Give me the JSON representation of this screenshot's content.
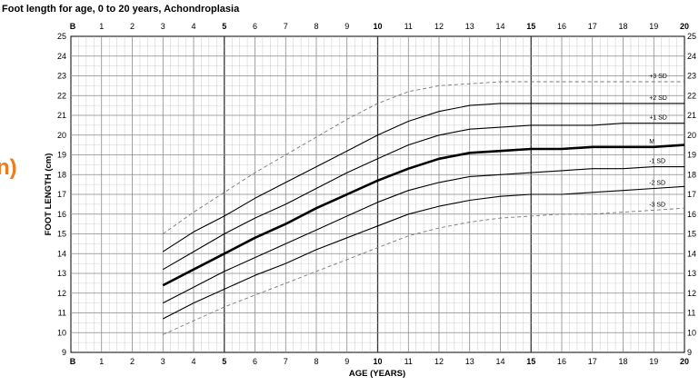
{
  "page": {
    "side_fragment": "n)",
    "accent_color": "#f07a1f"
  },
  "chart_data": {
    "type": "line",
    "title": "Foot length for age, 0 to 20 years, Achondroplasia",
    "xlabel": "AGE (YEARS)",
    "ylabel": "FOOT LENGTH (cm)",
    "xlim": [
      0,
      20
    ],
    "ylim": [
      9,
      25
    ],
    "grid": true,
    "x_ticks": [
      "B",
      "1",
      "2",
      "3",
      "4",
      "5",
      "6",
      "7",
      "8",
      "9",
      "10",
      "11",
      "12",
      "13",
      "14",
      "15",
      "16",
      "17",
      "18",
      "19",
      "20"
    ],
    "x_ticks_bold": [
      "B",
      "5",
      "10",
      "15",
      "20"
    ],
    "y_ticks": [
      "9",
      "10",
      "11",
      "12",
      "13",
      "14",
      "15",
      "16",
      "17",
      "18",
      "19",
      "20",
      "21",
      "22",
      "23",
      "24",
      "25"
    ],
    "x": [
      3,
      4,
      5,
      6,
      7,
      8,
      9,
      10,
      11,
      12,
      13,
      14,
      15,
      16,
      17,
      18,
      19,
      20
    ],
    "series": [
      {
        "name": "+3 SD",
        "style": "dashed",
        "values": [
          15.0,
          16.1,
          17.1,
          18.1,
          19.0,
          19.9,
          20.8,
          21.6,
          22.2,
          22.5,
          22.6,
          22.7,
          22.7,
          22.7,
          22.7,
          22.7,
          22.7,
          22.7
        ]
      },
      {
        "name": "+2 SD",
        "style": "thin",
        "values": [
          14.1,
          15.1,
          15.9,
          16.8,
          17.6,
          18.4,
          19.2,
          20.0,
          20.7,
          21.2,
          21.5,
          21.6,
          21.6,
          21.6,
          21.6,
          21.6,
          21.6,
          21.6
        ]
      },
      {
        "name": "+1 SD",
        "style": "thin",
        "values": [
          13.2,
          14.1,
          15.0,
          15.8,
          16.5,
          17.3,
          18.1,
          18.8,
          19.5,
          20.0,
          20.3,
          20.4,
          20.5,
          20.5,
          20.5,
          20.6,
          20.6,
          20.6
        ]
      },
      {
        "name": "M",
        "style": "bold",
        "values": [
          12.4,
          13.2,
          14.0,
          14.8,
          15.5,
          16.3,
          17.0,
          17.7,
          18.3,
          18.8,
          19.1,
          19.2,
          19.3,
          19.3,
          19.4,
          19.4,
          19.4,
          19.5
        ]
      },
      {
        "name": "-1 SD",
        "style": "thin",
        "values": [
          11.5,
          12.3,
          13.1,
          13.8,
          14.5,
          15.2,
          15.9,
          16.6,
          17.2,
          17.6,
          17.9,
          18.0,
          18.1,
          18.2,
          18.3,
          18.3,
          18.4,
          18.4
        ]
      },
      {
        "name": "-2 SD",
        "style": "thin",
        "values": [
          10.7,
          11.5,
          12.2,
          12.9,
          13.5,
          14.2,
          14.8,
          15.4,
          16.0,
          16.4,
          16.7,
          16.9,
          17.0,
          17.0,
          17.1,
          17.2,
          17.3,
          17.4
        ]
      },
      {
        "name": "-3 SD",
        "style": "dashed",
        "values": [
          9.9,
          10.6,
          11.3,
          11.9,
          12.5,
          13.1,
          13.7,
          14.3,
          14.9,
          15.3,
          15.6,
          15.8,
          15.9,
          16.0,
          16.0,
          16.1,
          16.2,
          16.3
        ]
      }
    ]
  }
}
